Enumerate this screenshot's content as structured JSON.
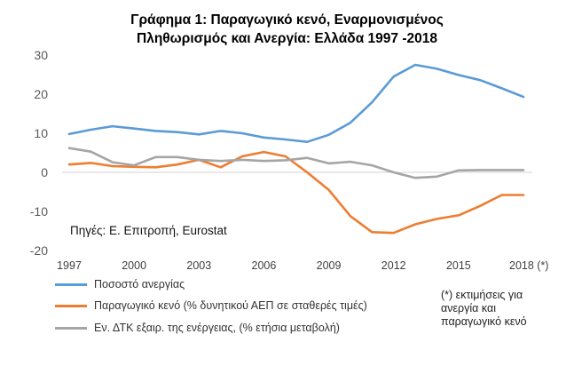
{
  "chart_data": {
    "type": "line",
    "title_line1": "Γράφημα 1: Παραγωγικό κενό, Εναρμονισμένος",
    "title_line2": "Πληθωρισμός και Ανεργία: Ελλάδα 1997 -2018",
    "x": [
      1997,
      1998,
      1999,
      2000,
      2001,
      2002,
      2003,
      2004,
      2005,
      2006,
      2007,
      2008,
      2009,
      2010,
      2011,
      2012,
      2013,
      2014,
      2015,
      2016,
      2017,
      2018
    ],
    "x_tick_labels": [
      "1997",
      "2000",
      "2003",
      "2006",
      "2009",
      "2012",
      "2015",
      "2018 (*)"
    ],
    "x_tick_years": [
      1997,
      2000,
      2003,
      2006,
      2009,
      2012,
      2015,
      2018
    ],
    "y_ticks": [
      30,
      20,
      10,
      0,
      -10,
      -20
    ],
    "ylim": [
      -20,
      30
    ],
    "grid": false,
    "series": [
      {
        "name": "Ποσοστό ανεργίας",
        "color": "#5b9bd5",
        "values": [
          9.8,
          10.9,
          11.8,
          11.2,
          10.6,
          10.3,
          9.7,
          10.6,
          10.0,
          8.9,
          8.4,
          7.8,
          9.6,
          12.7,
          17.9,
          24.5,
          27.5,
          26.5,
          24.9,
          23.6,
          21.5,
          19.3
        ]
      },
      {
        "name": "Παραγωγικό κενό (% δυνητικού ΑΕΠ σε σταθερές τιμές)",
        "color": "#ed7d31",
        "values": [
          2.0,
          2.4,
          1.6,
          1.4,
          1.3,
          2.0,
          3.2,
          1.3,
          4.1,
          5.2,
          4.1,
          0.0,
          -4.5,
          -11.2,
          -15.3,
          -15.5,
          -13.3,
          -11.9,
          -11.0,
          -8.6,
          -5.8,
          -5.8
        ]
      },
      {
        "name": "Εν. ΔΤΚ εξαιρ. της ενέργειας, (% ετήσια μεταβολή)",
        "color": "#a5a5a5",
        "values": [
          6.2,
          5.3,
          2.6,
          1.8,
          3.9,
          3.9,
          3.2,
          2.9,
          3.2,
          2.9,
          3.1,
          3.7,
          2.3,
          2.7,
          1.8,
          0.0,
          -1.4,
          -1.1,
          0.5,
          0.6,
          0.6,
          0.6
        ]
      }
    ],
    "source_note": "Πηγές: Ε. Επιτροπή, Eurostat",
    "footnote": [
      "(*) εκτιμήσεις για",
      "ανεργία και",
      "παραγωγικό κενό"
    ]
  }
}
